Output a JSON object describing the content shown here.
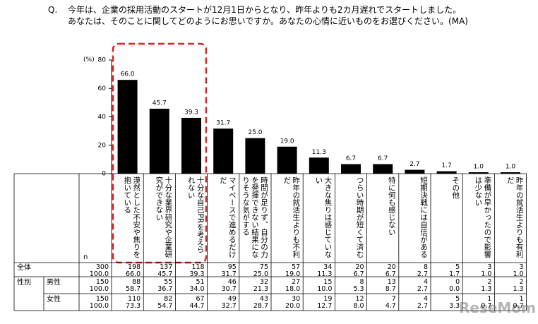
{
  "question": {
    "marker": "Q.",
    "line1": "今年は、企業の採用活動のスタートが12月1日からとなり、昨年よりも2カ月遅れでスタートしました。",
    "line2": "あなたは、そのことに関してどのようにお思いですか。あなたの心情に近いものをお選びください。(MA)"
  },
  "chart_data": {
    "type": "bar",
    "y_unit": "(%)",
    "categories": [
      "漠然とした不安や焦りを抱いている",
      "十分な業界研究や企業研究ができない",
      "十分な自己PRを考えられない",
      "マイペースで進めるだけだ",
      "時間が足りず、自分の力を発揮できない結果になりそうな気がする",
      "昨年の就活生よりも不利だ",
      "大きな焦りは感じていない",
      "つらい時期が短くて済む",
      "特に何も感じない",
      "短期決戦には自信がある",
      "その他",
      "準備が早かったので影響は少ない",
      "昨年の就活生よりも有利だ"
    ],
    "values": [
      66,
      45.7,
      39.3,
      31.7,
      25,
      19,
      11.3,
      6.7,
      6.7,
      2.7,
      1.7,
      1,
      1
    ],
    "value_labels": [
      "66.0",
      "45.7",
      "39.3",
      "31.7",
      "25.0",
      "19.0",
      "11.3",
      "6.7",
      "6.7",
      "2.7",
      "1.7",
      "1.0",
      "1.0"
    ],
    "color": "#000000",
    "ylim": [
      0,
      80
    ],
    "yticks": [
      0,
      20,
      40,
      60,
      80
    ],
    "grid": false
  },
  "table": {
    "n_label": "n",
    "rows": [
      {
        "label": "全体",
        "n": "300",
        "n_pct": "100.0",
        "counts": [
          "198",
          "137",
          "118",
          "95",
          "75",
          "57",
          "34",
          "20",
          "20",
          "8",
          "5",
          "3",
          "3"
        ],
        "pcts": [
          "66.0",
          "45.7",
          "39.3",
          "31.7",
          "25.0",
          "19.0",
          "11.3",
          "6.7",
          "6.7",
          "2.7",
          "1.7",
          "1.0",
          "1.0"
        ]
      },
      {
        "group": "性別",
        "label": "男性",
        "n": "150",
        "n_pct": "100.0",
        "counts": [
          "88",
          "55",
          "51",
          "46",
          "32",
          "27",
          "15",
          "8",
          "13",
          "4",
          "0",
          "2",
          "2"
        ],
        "pcts": [
          "58.7",
          "36.7",
          "34.0",
          "30.7",
          "21.3",
          "18.0",
          "10.0",
          "5.3",
          "8.7",
          "2.7",
          "0.0",
          "1.3",
          "1.3"
        ]
      },
      {
        "label": "女性",
        "n": "150",
        "n_pct": "100.0",
        "counts": [
          "110",
          "82",
          "67",
          "49",
          "43",
          "30",
          "19",
          "12",
          "7",
          "4",
          "5",
          "1",
          "1"
        ],
        "pcts": [
          "73.3",
          "54.7",
          "44.7",
          "32.7",
          "28.7",
          "20.0",
          "12.7",
          "8.0",
          "4.7",
          "2.7",
          "3.3",
          "0.7",
          "0.7"
        ]
      }
    ]
  },
  "watermark": "ReseMom"
}
